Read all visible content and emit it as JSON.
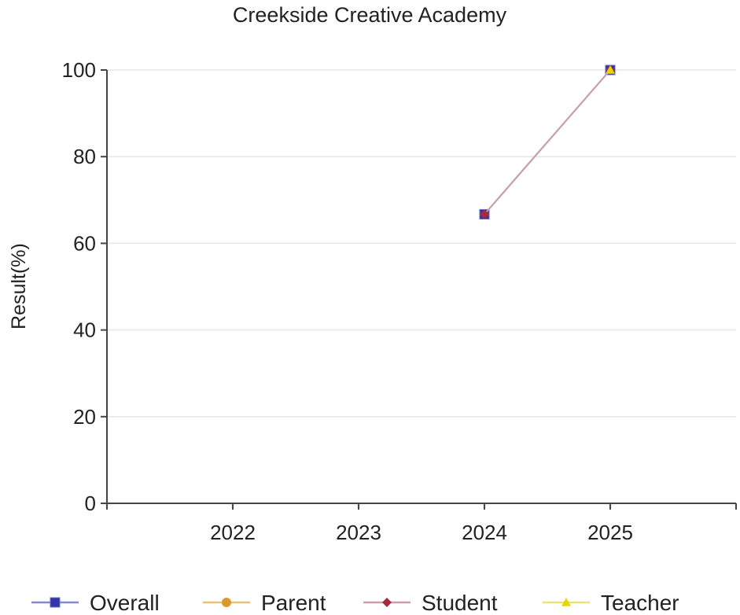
{
  "chart_data": {
    "type": "line",
    "title": "Creekside Creative Academy",
    "xlabel": "",
    "ylabel": "Result(%)",
    "categories": [
      "2022",
      "2023",
      "2024",
      "2025"
    ],
    "ylim": [
      0,
      100
    ],
    "yticks": [
      0,
      20,
      40,
      60,
      80,
      100
    ],
    "grid": true,
    "legend_position": "bottom",
    "series": [
      {
        "name": "Overall",
        "marker": "square",
        "color": "#3333aa",
        "line_color": "#8888cc",
        "values": [
          null,
          null,
          66.7,
          100
        ]
      },
      {
        "name": "Parent",
        "marker": "circle",
        "color": "#d99a2b",
        "line_color": "#e8c27a",
        "values": [
          null,
          null,
          null,
          null
        ]
      },
      {
        "name": "Student",
        "marker": "diamond",
        "color": "#a52a3a",
        "line_color": "#c9a0a8",
        "values": [
          null,
          null,
          66.7,
          100
        ]
      },
      {
        "name": "Teacher",
        "marker": "triangle",
        "color": "#e5d800",
        "line_color": "#eae27a",
        "values": [
          null,
          null,
          null,
          100
        ]
      }
    ]
  }
}
